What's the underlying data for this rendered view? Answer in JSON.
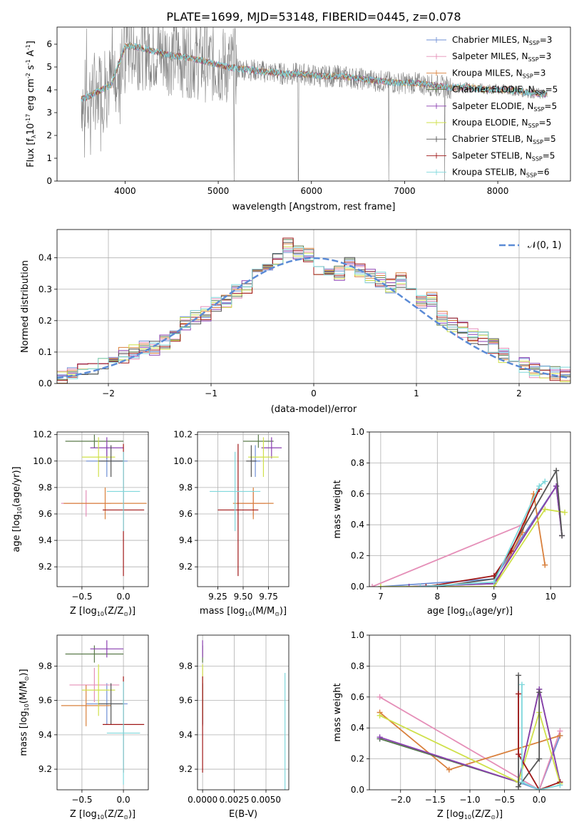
{
  "figure": {
    "title": "PLATE=1699, MJD=53148, FIBERID=0445, z=0.078",
    "colors": {
      "Chabrier MILES": "#6f8fd6",
      "Salpeter MILES": "#e58fb8",
      "Kroupa MILES": "#d9803c",
      "Chabrier ELODIE": "#5a7a4a",
      "Salpeter ELODIE": "#8a3fb0",
      "Kroupa ELODIE": "#cfe04a",
      "Chabrier STELIB": "#555555",
      "Salpeter STELIB": "#a01818",
      "Kroupa STELIB": "#7fd8dc",
      "data": "#808080",
      "gaussian": "#5b8bd6"
    }
  },
  "chart_data": [
    {
      "type": "line",
      "id": "spectrum",
      "xlabel": "wavelength [Angstrom, rest frame]",
      "ylabel": "Flux [f",
      "ylabel_sub": "λ",
      "ylabel_rest": "10",
      "ylabel_sup": "-17",
      "ylabel_tail": " erg cm",
      "ylabel_sup2": "-2",
      "ylabel_tail2": " s",
      "ylabel_sup3": "-1",
      "ylabel_tail3": " A",
      "ylabel_sup4": "-1",
      "ylabel_end": "]",
      "xlim": [
        3270,
        8780
      ],
      "ylim": [
        0,
        6.75
      ],
      "xticks": [
        4000,
        5000,
        6000,
        7000,
        8000
      ],
      "yticks": [
        0,
        1,
        2,
        3,
        4,
        5,
        6
      ],
      "x": [
        3550,
        3700,
        3850,
        4000,
        4100,
        4300,
        4500,
        4700,
        4900,
        5100,
        5300,
        5500,
        5700,
        5900,
        6100,
        6300,
        6500,
        6700,
        6900,
        7100,
        7300,
        7500,
        7700,
        7900,
        8100,
        8300,
        8500
      ],
      "data_flux": [
        3.7,
        4.0,
        4.3,
        5.6,
        5.8,
        5.7,
        5.5,
        5.4,
        5.2,
        5.0,
        4.9,
        4.8,
        4.7,
        4.7,
        4.6,
        4.6,
        4.5,
        4.4,
        4.3,
        4.3,
        4.2,
        4.1,
        4.1,
        4.0,
        4.0,
        3.9,
        3.8
      ],
      "model_flux": [
        3.6,
        3.9,
        4.2,
        5.9,
        5.9,
        5.7,
        5.5,
        5.4,
        5.2,
        5.0,
        4.9,
        4.8,
        4.7,
        4.7,
        4.6,
        4.6,
        4.5,
        4.4,
        4.3,
        4.3,
        4.2,
        4.1,
        4.1,
        4.0,
        4.0,
        3.9,
        3.8
      ],
      "legend_placement": "right",
      "legend": [
        {
          "name": "Chabrier MILES, N",
          "sub": "SSP",
          "val": "=3"
        },
        {
          "name": "Salpeter MILES, N",
          "sub": "SSP",
          "val": "=3"
        },
        {
          "name": "Kroupa MILES, N",
          "sub": "SSP",
          "val": "=3"
        },
        {
          "name": "Chabrier ELODIE, N",
          "sub": "SSP",
          "val": "=5"
        },
        {
          "name": "Salpeter ELODIE, N",
          "sub": "SSP",
          "val": "=5"
        },
        {
          "name": "Kroupa ELODIE, N",
          "sub": "SSP",
          "val": "=5"
        },
        {
          "name": "Chabrier STELIB, N",
          "sub": "SSP",
          "val": "=5"
        },
        {
          "name": "Salpeter STELIB, N",
          "sub": "SSP",
          "val": "=5"
        },
        {
          "name": "Kroupa STELIB, N",
          "sub": "SSP",
          "val": "=6"
        }
      ]
    },
    {
      "type": "line",
      "id": "residuals",
      "xlabel": "(data-model)/error",
      "ylabel": "Normed distribution",
      "xlim": [
        -2.5,
        2.5
      ],
      "ylim": [
        0,
        0.49
      ],
      "xticks": [
        -2,
        -1,
        0,
        1,
        2
      ],
      "yticks": [
        0.0,
        0.1,
        0.2,
        0.3,
        0.4
      ],
      "grid": true,
      "legend_placement": "top-right",
      "gaussian_label": "𝒩(0, 1)",
      "bin_centers": [
        -2.45,
        -2.35,
        -2.25,
        -2.15,
        -2.05,
        -1.95,
        -1.85,
        -1.75,
        -1.65,
        -1.55,
        -1.45,
        -1.35,
        -1.25,
        -1.15,
        -1.05,
        -0.95,
        -0.85,
        -0.75,
        -0.65,
        -0.55,
        -0.45,
        -0.35,
        -0.25,
        -0.15,
        -0.05,
        0.05,
        0.15,
        0.25,
        0.35,
        0.45,
        0.55,
        0.65,
        0.75,
        0.85,
        0.95,
        1.05,
        1.15,
        1.25,
        1.35,
        1.45,
        1.55,
        1.65,
        1.75,
        1.85,
        1.95,
        2.05,
        2.15,
        2.25,
        2.35,
        2.45
      ],
      "hist_base": [
        0.02,
        0.03,
        0.04,
        0.05,
        0.06,
        0.07,
        0.09,
        0.1,
        0.12,
        0.11,
        0.13,
        0.15,
        0.19,
        0.21,
        0.22,
        0.25,
        0.26,
        0.29,
        0.31,
        0.34,
        0.38,
        0.4,
        0.44,
        0.42,
        0.41,
        0.37,
        0.36,
        0.35,
        0.38,
        0.36,
        0.34,
        0.33,
        0.31,
        0.33,
        0.28,
        0.26,
        0.27,
        0.21,
        0.19,
        0.17,
        0.15,
        0.14,
        0.12,
        0.09,
        0.08,
        0.06,
        0.04,
        0.04,
        0.03,
        0.03
      ]
    },
    {
      "type": "scatter",
      "id": "age_vs_Z",
      "xlabel": "Z [log",
      "xlabel_sub": "10",
      "xlabel_rest": "(Z/Z",
      "xlabel_sub2": "⊙",
      "xlabel_end": ")]",
      "ylabel": "age  [log",
      "ylabel_sub": "10",
      "ylabel_rest": "(age/yr)]",
      "xlim": [
        -0.8,
        0.3
      ],
      "ylim": [
        9.05,
        10.22
      ],
      "xticks": [
        -0.5,
        0.0
      ],
      "yticks": [
        9.2,
        9.4,
        9.6,
        9.8,
        10.0,
        10.2
      ],
      "points": [
        {
          "x": -0.2,
          "y": 10.0,
          "xerr": 0.25,
          "yerr": 0.12
        },
        {
          "x": -0.45,
          "y": 9.68,
          "xerr": 0.3,
          "yerr": 0.1
        },
        {
          "x": -0.22,
          "y": 9.68,
          "xerr": 0.5,
          "yerr": 0.12
        },
        {
          "x": -0.35,
          "y": 10.15,
          "xerr": 0.35,
          "yerr": 0.05
        },
        {
          "x": -0.2,
          "y": 10.1,
          "xerr": 0.2,
          "yerr": 0.08
        },
        {
          "x": -0.3,
          "y": 10.03,
          "xerr": 0.2,
          "yerr": 0.15
        },
        {
          "x": -0.15,
          "y": 10.0,
          "xerr": 0.15,
          "yerr": 0.12
        },
        {
          "x": 0.0,
          "y": 9.63,
          "xerr": 0.25,
          "yerr": 0.5
        },
        {
          "x": 0.0,
          "y": 9.77,
          "xerr": 0.2,
          "yerr": 0.3
        }
      ]
    },
    {
      "type": "scatter",
      "id": "age_vs_mass",
      "xlabel": "mass [log",
      "xlabel_sub": "10",
      "xlabel_rest": "(M/M",
      "xlabel_sub2": "⊙",
      "xlabel_end": ")]",
      "xlim": [
        9.05,
        9.95
      ],
      "ylim": [
        9.05,
        10.22
      ],
      "xticks": [
        9.25,
        9.5,
        9.75
      ],
      "yticks": [
        9.2,
        9.4,
        9.6,
        9.8,
        10.0,
        10.2
      ],
      "points": [
        {
          "x": 9.62,
          "y": 10.0,
          "xerr": 0.05,
          "yerr": 0.12
        },
        {
          "x": 9.6,
          "y": 9.68,
          "xerr": 0.12,
          "yerr": 0.1
        },
        {
          "x": 9.6,
          "y": 9.68,
          "xerr": 0.2,
          "yerr": 0.12
        },
        {
          "x": 9.65,
          "y": 10.15,
          "xerr": 0.15,
          "yerr": 0.05
        },
        {
          "x": 9.78,
          "y": 10.1,
          "xerr": 0.1,
          "yerr": 0.08
        },
        {
          "x": 9.7,
          "y": 10.03,
          "xerr": 0.15,
          "yerr": 0.15
        },
        {
          "x": 9.58,
          "y": 10.0,
          "xerr": 0.05,
          "yerr": 0.12
        },
        {
          "x": 9.45,
          "y": 9.63,
          "xerr": 0.2,
          "yerr": 0.5
        },
        {
          "x": 9.42,
          "y": 9.77,
          "xerr": 0.25,
          "yerr": 0.3
        }
      ]
    },
    {
      "type": "line",
      "id": "weight_vs_age",
      "xlabel": "age  [log",
      "xlabel_sub": "10",
      "xlabel_rest": "(age/yr)]",
      "ylabel": "mass weight",
      "xlim": [
        6.8,
        10.35
      ],
      "ylim": [
        0,
        1.0
      ],
      "xticks": [
        7,
        8,
        9,
        10
      ],
      "yticks": [
        0.0,
        0.2,
        0.4,
        0.6,
        0.8,
        1.0
      ],
      "grid": true,
      "series": [
        {
          "x": [
            7.0,
            9.0,
            10.1
          ],
          "y": [
            0.0,
            0.05,
            0.65
          ]
        },
        {
          "x": [
            6.85,
            9.5
          ],
          "y": [
            0.0,
            0.4
          ]
        },
        {
          "x": [
            7.7,
            9.0,
            9.5,
            9.7,
            9.9
          ],
          "y": [
            0.0,
            0.0,
            0.35,
            0.6,
            0.14
          ]
        },
        {
          "x": [
            7.5,
            9.0,
            10.1,
            10.2
          ],
          "y": [
            0.0,
            0.02,
            0.65,
            0.33
          ]
        },
        {
          "x": [
            7.5,
            9.0,
            10.1,
            10.2
          ],
          "y": [
            0.0,
            0.02,
            0.65,
            0.33
          ]
        },
        {
          "x": [
            7.0,
            9.0,
            9.9,
            10.25
          ],
          "y": [
            0.0,
            0.0,
            0.5,
            0.48
          ]
        },
        {
          "x": [
            8.0,
            9.0,
            10.1,
            10.2
          ],
          "y": [
            0.0,
            0.05,
            0.75,
            0.33
          ]
        },
        {
          "x": [
            7.8,
            9.0,
            9.3,
            9.8
          ],
          "y": [
            0.0,
            0.07,
            0.23,
            0.63
          ]
        },
        {
          "x": [
            7.7,
            9.0,
            9.8,
            9.9
          ],
          "y": [
            0.0,
            0.03,
            0.65,
            0.68
          ]
        }
      ]
    },
    {
      "type": "scatter",
      "id": "mass_vs_Z",
      "xlabel": "Z [log",
      "xlabel_sub": "10",
      "xlabel_rest": "(Z/Z",
      "xlabel_sub2": "⊙",
      "xlabel_end": ")]",
      "ylabel": "mass [log",
      "ylabel_sub": "10",
      "ylabel_rest": "(M/M",
      "ylabel_sub2": "⊙",
      "ylabel_end": ")]",
      "xlim": [
        -0.8,
        0.3
      ],
      "ylim": [
        9.08,
        9.98
      ],
      "xticks": [
        -0.5,
        0.0
      ],
      "yticks": [
        9.2,
        9.4,
        9.6,
        9.8
      ],
      "points": [
        {
          "x": -0.2,
          "y": 9.58,
          "xerr": 0.25,
          "yerr": 0.12
        },
        {
          "x": -0.35,
          "y": 9.69,
          "xerr": 0.3,
          "yerr": 0.1
        },
        {
          "x": -0.45,
          "y": 9.57,
          "xerr": 0.3,
          "yerr": 0.12
        },
        {
          "x": -0.35,
          "y": 9.87,
          "xerr": 0.35,
          "yerr": 0.05
        },
        {
          "x": -0.2,
          "y": 9.9,
          "xerr": 0.2,
          "yerr": 0.05
        },
        {
          "x": -0.3,
          "y": 9.66,
          "xerr": 0.2,
          "yerr": 0.15
        },
        {
          "x": -0.15,
          "y": 9.58,
          "xerr": 0.15,
          "yerr": 0.12
        },
        {
          "x": 0.0,
          "y": 9.46,
          "xerr": 0.25,
          "yerr": 0.28
        },
        {
          "x": 0.0,
          "y": 9.41,
          "xerr": 0.2,
          "yerr": 0.3
        }
      ]
    },
    {
      "type": "scatter",
      "id": "mass_vs_EBV",
      "xlabel": "E(B-V)",
      "xlim": [
        -0.0004,
        0.0068
      ],
      "ylim": [
        9.08,
        9.98
      ],
      "xticks": [
        0.0,
        0.0025,
        0.005
      ],
      "xtick_labels": [
        "0.0000",
        "0.0025",
        "0.0050"
      ],
      "yticks": [
        9.2,
        9.4,
        9.6,
        9.8
      ],
      "points": [
        {
          "x": 0.0,
          "y": 9.58,
          "yerr": 0.12
        },
        {
          "x": 0.0,
          "y": 9.69,
          "yerr": 0.1
        },
        {
          "x": 0.0,
          "y": 9.57,
          "yerr": 0.12
        },
        {
          "x": 0.0,
          "y": 9.87,
          "yerr": 0.05
        },
        {
          "x": 0.0,
          "y": 9.9,
          "yerr": 0.05
        },
        {
          "x": 0.0,
          "y": 9.66,
          "yerr": 0.15
        },
        {
          "x": 0.0,
          "y": 9.58,
          "yerr": 0.12
        },
        {
          "x": 0.0,
          "y": 9.46,
          "yerr": 0.28
        },
        {
          "x": 0.0065,
          "y": 9.41,
          "yerr": 0.35
        }
      ]
    },
    {
      "type": "line",
      "id": "weight_vs_Z",
      "xlabel": "Z [log",
      "xlabel_sub": "10",
      "xlabel_rest": "(Z/Z",
      "xlabel_sub2": "⊙",
      "xlabel_end": ")]",
      "ylabel": "mass weight",
      "xlim": [
        -2.45,
        0.45
      ],
      "ylim": [
        0,
        1.0
      ],
      "xticks": [
        -2.0,
        -1.5,
        -1.0,
        -0.5,
        0.0
      ],
      "yticks": [
        0.0,
        0.2,
        0.4,
        0.6,
        0.8,
        1.0
      ],
      "grid": true,
      "series": [
        {
          "x": [
            -2.3,
            -0.3,
            0.0,
            0.3
          ],
          "y": [
            0.33,
            0.05,
            0.0,
            0.35
          ]
        },
        {
          "x": [
            -2.3,
            0.0,
            0.3
          ],
          "y": [
            0.6,
            0.0,
            0.38
          ]
        },
        {
          "x": [
            -2.3,
            -1.3,
            0.3
          ],
          "y": [
            0.5,
            0.13,
            0.35
          ]
        },
        {
          "x": [
            -2.3,
            -0.3,
            0.0,
            0.3
          ],
          "y": [
            0.33,
            0.05,
            0.65,
            0.05
          ]
        },
        {
          "x": [
            -2.3,
            -0.3,
            0.0,
            0.3
          ],
          "y": [
            0.34,
            0.05,
            0.65,
            0.05
          ]
        },
        {
          "x": [
            -2.3,
            -0.3,
            0.0,
            0.3
          ],
          "y": [
            0.48,
            0.05,
            0.5,
            0.04
          ]
        },
        {
          "x": [
            -0.3,
            -0.3,
            0.0,
            0.0
          ],
          "y": [
            0.74,
            0.02,
            0.2,
            0.63
          ]
        },
        {
          "x": [
            -0.3,
            -0.3,
            0.0,
            0.3
          ],
          "y": [
            0.62,
            0.23,
            0.0,
            0.05
          ]
        },
        {
          "x": [
            -0.25,
            -0.25,
            0.0,
            0.3
          ],
          "y": [
            0.68,
            0.05,
            0.0,
            0.03
          ]
        }
      ]
    }
  ]
}
